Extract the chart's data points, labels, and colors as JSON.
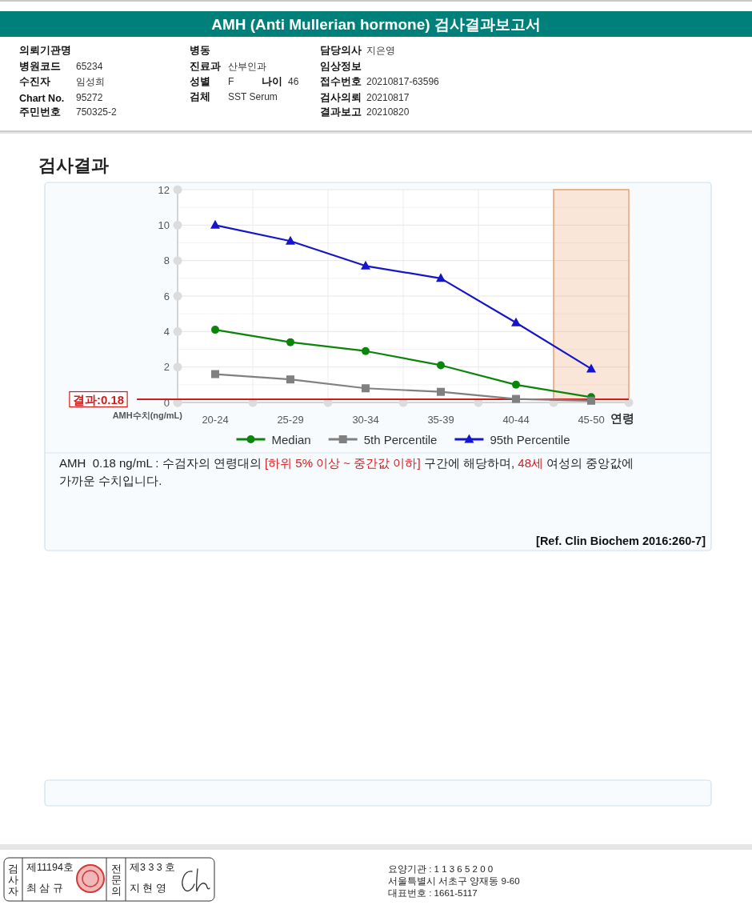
{
  "chart_data": {
    "type": "line",
    "title": "AMH (Anti Mullerian hormone) 검사결과보고서",
    "subtitle": "검사결과",
    "xlabel": "연령",
    "ylabel": "AMH수치(ng/mL)",
    "categories": [
      "20-24",
      "25-29",
      "30-34",
      "35-39",
      "40-44",
      "45-50"
    ],
    "series": [
      {
        "name": "Median",
        "color": "#0a850a",
        "marker": "circle",
        "values": [
          4.1,
          3.4,
          2.9,
          2.1,
          1.0,
          0.3
        ]
      },
      {
        "name": "5th Percentile",
        "color": "#808080",
        "marker": "square",
        "values": [
          1.6,
          1.3,
          0.8,
          0.6,
          0.2,
          0.1
        ]
      },
      {
        "name": "95th Percentile",
        "color": "#1515cc",
        "marker": "triangle",
        "values": [
          10.0,
          9.1,
          7.7,
          7.0,
          4.5,
          1.9
        ]
      }
    ],
    "ylim": [
      0,
      12
    ],
    "yticks": [
      0,
      {
        "value": 1,
        "label": null
      },
      2,
      {
        "value": 3,
        "label": null
      },
      4,
      {
        "value": 5,
        "label": null
      },
      6,
      {
        "value": 7,
        "label": null
      },
      8,
      {
        "value": 9,
        "label": null
      },
      10,
      {
        "value": 11,
        "label": null
      },
      12
    ],
    "grid": true,
    "legend": "bottom",
    "ref_lines": [
      {
        "axis": "y",
        "value": 0.18,
        "label": "결과:0.18",
        "color": "#d01c1c"
      }
    ],
    "bands": [
      {
        "axis": "x",
        "from": "45-50",
        "to": "45-50",
        "color": "#e9a472"
      }
    ],
    "annotations": [
      "의뢰기관명",
      "병원코드",
      "65234",
      "수진자",
      "임성희",
      "Chart No.",
      "95272",
      "주민번호",
      "750325-2",
      "병동",
      "진료과",
      "산부인과",
      "성별",
      "F",
      "나이",
      "46",
      "검체",
      "SST Serum",
      "담당의사",
      "지은영",
      "임상정보",
      "접수번호",
      "20210817-63596",
      "검사의뢰",
      "20210817",
      "결과보고",
      "20210820",
      "AMH  0.18 ng/mL : 수검자의 연령대의",
      "[하위 5% 이상 ~ 중간값 이하]",
      "구간에 해당하며,",
      "48세",
      "여성의 중앙값에",
      "가까운 수치입니다.",
      "[Ref. Clin Biochem 2016:260-7]",
      "검사자",
      "제11194호",
      "최 삼 규",
      "전문의",
      "제3 3 3 호",
      "지 현 영",
      "요양기관 : 1 1 3 6 5 2 0 0",
      "서울특별시 서초구 양재동 9-60",
      "대표번호 : 1661-5117"
    ]
  }
}
